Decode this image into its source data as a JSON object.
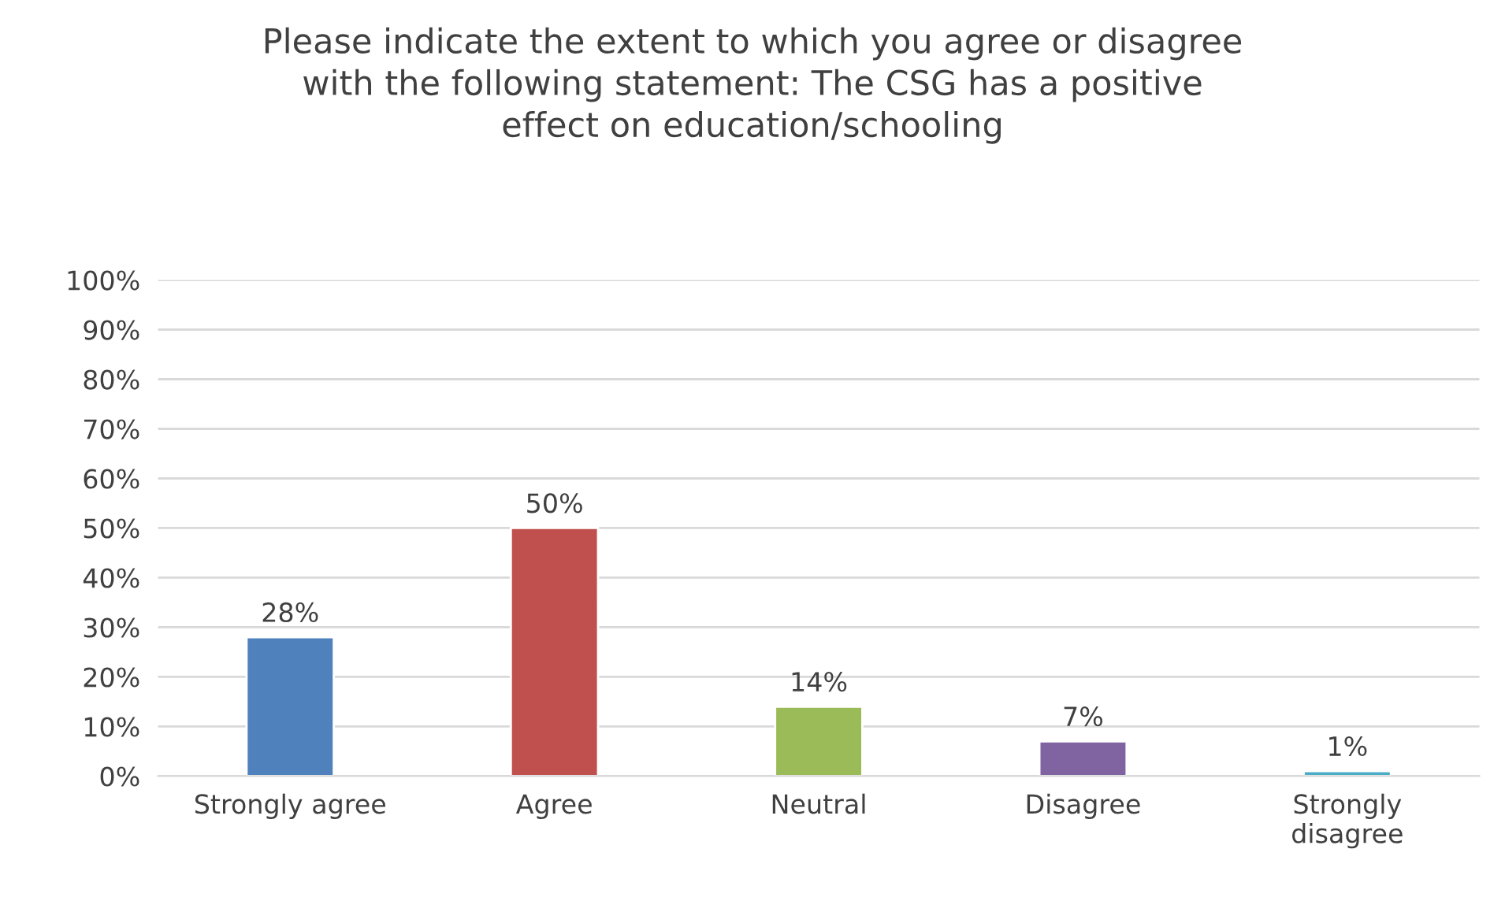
{
  "chart_data": {
    "type": "bar",
    "title": "Please indicate the extent to which you agree or disagree\nwith the following statement: The CSG has a positive\neffect on education/schooling",
    "categories": [
      "Strongly agree",
      "Agree",
      "Neutral",
      "Disagree",
      "Strongly\ndisagree"
    ],
    "values": [
      28,
      50,
      14,
      7,
      1
    ],
    "value_labels": [
      "28%",
      "50%",
      "14%",
      "7%",
      "1%"
    ],
    "colors": [
      "#4f81bd",
      "#c0504d",
      "#9bbb59",
      "#8064a2",
      "#4bacc6"
    ],
    "ylim": [
      0,
      100
    ],
    "yticks": [
      {
        "value": 0,
        "label": "0%"
      },
      {
        "value": 10,
        "label": "10%"
      },
      {
        "value": 20,
        "label": "20%"
      },
      {
        "value": 30,
        "label": "30%"
      },
      {
        "value": 40,
        "label": "40%"
      },
      {
        "value": 50,
        "label": "50%"
      },
      {
        "value": 60,
        "label": "60%"
      },
      {
        "value": 70,
        "label": "70%"
      },
      {
        "value": 80,
        "label": "80%"
      },
      {
        "value": 90,
        "label": "90%"
      },
      {
        "value": 100,
        "label": "100%"
      }
    ],
    "grid": "y"
  }
}
